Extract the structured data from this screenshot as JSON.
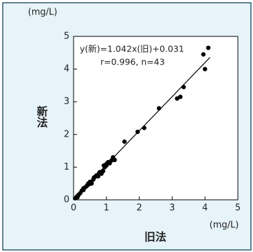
{
  "chart_data": {
    "type": "scatter",
    "y_unit": "(mg/L)",
    "x_unit": "(mg/L)",
    "ylabel": "新法",
    "xlabel": "旧法",
    "annotations": [
      "y(新)=1.042x(旧)+0.031",
      "r=0.996, n=43"
    ],
    "fit": {
      "slope": 1.042,
      "intercept": 0.031,
      "x": [
        0,
        4.15
      ]
    },
    "xlim": [
      0,
      5
    ],
    "ylim": [
      0,
      5
    ],
    "xticks": [
      0,
      1,
      2,
      3,
      4,
      5
    ],
    "yticks": [
      0,
      1,
      2,
      3,
      4,
      5
    ],
    "grid": false,
    "color": "#000000",
    "x": [
      0.05,
      0.1,
      0.12,
      0.15,
      0.2,
      0.25,
      0.3,
      0.3,
      0.35,
      0.4,
      0.42,
      0.45,
      0.48,
      0.5,
      0.55,
      0.6,
      0.62,
      0.65,
      0.7,
      0.75,
      0.78,
      0.8,
      0.85,
      0.9,
      0.92,
      0.95,
      1.0,
      1.0,
      1.05,
      1.1,
      1.15,
      1.2,
      1.25,
      1.55,
      1.95,
      2.15,
      2.6,
      3.15,
      3.25,
      3.35,
      3.95,
      4.0,
      4.1
    ],
    "y": [
      0.05,
      0.1,
      0.08,
      0.15,
      0.2,
      0.28,
      0.3,
      0.35,
      0.38,
      0.42,
      0.45,
      0.5,
      0.48,
      0.55,
      0.5,
      0.62,
      0.68,
      0.7,
      0.75,
      0.72,
      0.82,
      0.85,
      0.8,
      0.88,
      1.05,
      1.0,
      1.1,
      1.05,
      1.15,
      1.12,
      1.2,
      1.3,
      1.22,
      1.78,
      2.08,
      2.2,
      2.8,
      3.1,
      3.15,
      3.45,
      4.45,
      4.0,
      4.65
    ]
  }
}
